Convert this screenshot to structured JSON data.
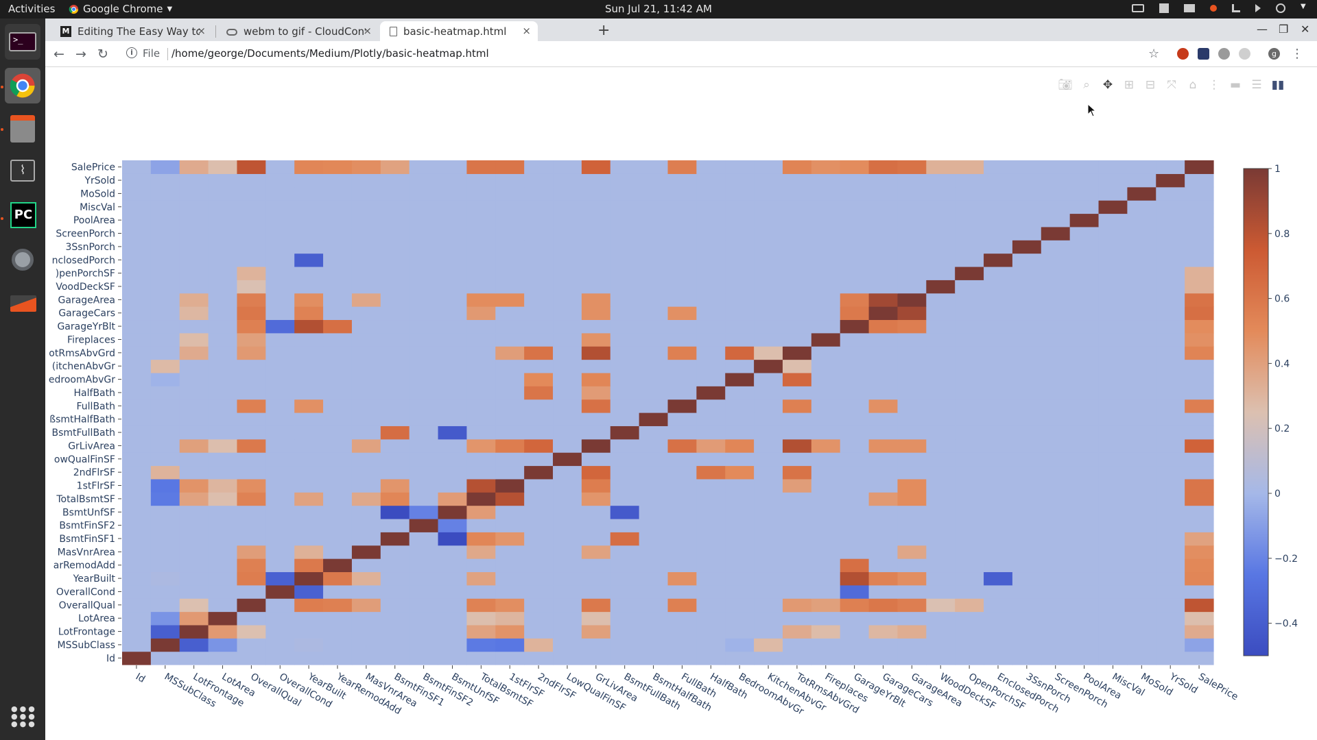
{
  "topbar": {
    "activities": "Activities",
    "app_name": "Google Chrome",
    "clock": "Sun Jul 21, 11:42 AM"
  },
  "browser": {
    "tabs": [
      {
        "title": "Editing The Easy Way to D",
        "favicon": "medium-icon",
        "active": false
      },
      {
        "title": "webm to gif - CloudConve",
        "favicon": "cloud-icon",
        "active": false
      },
      {
        "title": "basic-heatmap.html",
        "favicon": "file-icon",
        "active": true
      }
    ],
    "new_tab": "+",
    "close_glyph": "×",
    "address_scheme": "File",
    "address_url": "/home/george/Documents/Medium/Plotly/basic-heatmap.html",
    "profile_initial": "g"
  },
  "colors": {
    "page_bg": "#ffffff",
    "accent": "#e95420",
    "heatmap_scale": [
      "#3b4cc0",
      "#5977e3",
      "#a5b8e8",
      "#dcc0b0",
      "#e38a5a",
      "#cc5a33",
      "#7a3a34"
    ]
  },
  "chart_data": {
    "type": "heatmap",
    "variables": [
      "Id",
      "MSSubClass",
      "LotFrontage",
      "LotArea",
      "OverallQual",
      "OverallCond",
      "YearBuilt",
      "YearRemodAdd",
      "MasVnrArea",
      "BsmtFinSF1",
      "BsmtFinSF2",
      "BsmtUnfSF",
      "TotalBsmtSF",
      "1stFlrSF",
      "2ndFlrSF",
      "LowQualFinSF",
      "GrLivArea",
      "BsmtFullBath",
      "BsmtHalfBath",
      "FullBath",
      "HalfBath",
      "BedroomAbvGr",
      "KitchenAbvGr",
      "TotRmsAbvGrd",
      "Fireplaces",
      "GarageYrBlt",
      "GarageCars",
      "GarageArea",
      "WoodDeckSF",
      "OpenPorchSF",
      "EnclosedPorch",
      "3SsnPorch",
      "ScreenPorch",
      "PoolArea",
      "MiscVal",
      "MoSold",
      "YrSold",
      "SalePrice"
    ],
    "y_tick_labels_visible": [
      "SalePrice",
      "YrSold",
      "MoSold",
      "MiscVal",
      "PoolArea",
      "ScreenPorch",
      "3SsnPorch",
      "nclosedPorch",
      ")penPorchSF",
      "VoodDeckSF",
      "GarageArea",
      "GarageCars",
      "GarageYrBlt",
      "Fireplaces",
      "otRmsAbvGrd",
      "(itchenAbvGr",
      "edroomAbvGr",
      "HalfBath",
      "FullBath",
      "ßsmtHalfBath",
      "BsmtFullBath",
      "GrLivArea",
      "owQualFinSF",
      "2ndFlrSF",
      "1stFlrSF",
      "TotalBsmtSF",
      "BsmtUnfSF",
      "BsmtFinSF2",
      "BsmtFinSF1",
      "MasVnrArea",
      "arRemodAdd",
      "YearBuilt",
      "OverallCond",
      "OverallQual",
      "LotArea",
      "LotFrontage",
      "MSSubClass",
      "Id"
    ],
    "correlations": [
      {
        "a": "MSSubClass",
        "b": "LotFrontage",
        "v": -0.39
      },
      {
        "a": "MSSubClass",
        "b": "LotArea",
        "v": -0.14
      },
      {
        "a": "MSSubClass",
        "b": "YearBuilt",
        "v": 0.03
      },
      {
        "a": "MSSubClass",
        "b": "TotalBsmtSF",
        "v": -0.24
      },
      {
        "a": "MSSubClass",
        "b": "1stFlrSF",
        "v": -0.25
      },
      {
        "a": "MSSubClass",
        "b": "2ndFlrSF",
        "v": 0.31
      },
      {
        "a": "MSSubClass",
        "b": "BedroomAbvGr",
        "v": -0.02
      },
      {
        "a": "MSSubClass",
        "b": "KitchenAbvGr",
        "v": 0.28
      },
      {
        "a": "MSSubClass",
        "b": "SalePrice",
        "v": -0.08
      },
      {
        "a": "LotFrontage",
        "b": "LotArea",
        "v": 0.43
      },
      {
        "a": "LotFrontage",
        "b": "OverallQual",
        "v": 0.25
      },
      {
        "a": "LotFrontage",
        "b": "TotalBsmtSF",
        "v": 0.39
      },
      {
        "a": "LotFrontage",
        "b": "1stFlrSF",
        "v": 0.46
      },
      {
        "a": "LotFrontage",
        "b": "GrLivArea",
        "v": 0.4
      },
      {
        "a": "LotFrontage",
        "b": "TotRmsAbvGrd",
        "v": 0.35
      },
      {
        "a": "LotFrontage",
        "b": "Fireplaces",
        "v": 0.27
      },
      {
        "a": "LotFrontage",
        "b": "GarageCars",
        "v": 0.29
      },
      {
        "a": "LotFrontage",
        "b": "GarageArea",
        "v": 0.34
      },
      {
        "a": "LotFrontage",
        "b": "SalePrice",
        "v": 0.35
      },
      {
        "a": "LotArea",
        "b": "TotalBsmtSF",
        "v": 0.26
      },
      {
        "a": "LotArea",
        "b": "1stFlrSF",
        "v": 0.3
      },
      {
        "a": "LotArea",
        "b": "GrLivArea",
        "v": 0.26
      },
      {
        "a": "LotArea",
        "b": "SalePrice",
        "v": 0.26
      },
      {
        "a": "OverallQual",
        "b": "YearBuilt",
        "v": 0.57
      },
      {
        "a": "OverallQual",
        "b": "YearRemodAdd",
        "v": 0.55
      },
      {
        "a": "OverallQual",
        "b": "MasVnrArea",
        "v": 0.41
      },
      {
        "a": "OverallQual",
        "b": "TotalBsmtSF",
        "v": 0.54
      },
      {
        "a": "OverallQual",
        "b": "1stFlrSF",
        "v": 0.48
      },
      {
        "a": "OverallQual",
        "b": "GrLivArea",
        "v": 0.59
      },
      {
        "a": "OverallQual",
        "b": "FullBath",
        "v": 0.55
      },
      {
        "a": "OverallQual",
        "b": "TotRmsAbvGrd",
        "v": 0.43
      },
      {
        "a": "OverallQual",
        "b": "Fireplaces",
        "v": 0.4
      },
      {
        "a": "OverallQual",
        "b": "GarageYrBlt",
        "v": 0.55
      },
      {
        "a": "OverallQual",
        "b": "GarageCars",
        "v": 0.6
      },
      {
        "a": "OverallQual",
        "b": "GarageArea",
        "v": 0.56
      },
      {
        "a": "OverallQual",
        "b": "WoodDeckSF",
        "v": 0.24
      },
      {
        "a": "OverallQual",
        "b": "OpenPorchSF",
        "v": 0.31
      },
      {
        "a": "OverallQual",
        "b": "SalePrice",
        "v": 0.79
      },
      {
        "a": "OverallCond",
        "b": "YearBuilt",
        "v": -0.38
      },
      {
        "a": "OverallCond",
        "b": "GarageYrBlt",
        "v": -0.32
      },
      {
        "a": "YearBuilt",
        "b": "YearRemodAdd",
        "v": 0.59
      },
      {
        "a": "YearBuilt",
        "b": "MasVnrArea",
        "v": 0.32
      },
      {
        "a": "YearBuilt",
        "b": "TotalBsmtSF",
        "v": 0.39
      },
      {
        "a": "YearBuilt",
        "b": "FullBath",
        "v": 0.47
      },
      {
        "a": "YearBuilt",
        "b": "GarageYrBlt",
        "v": 0.83
      },
      {
        "a": "YearBuilt",
        "b": "GarageCars",
        "v": 0.54
      },
      {
        "a": "YearBuilt",
        "b": "GarageArea",
        "v": 0.48
      },
      {
        "a": "YearBuilt",
        "b": "EnclosedPorch",
        "v": -0.39
      },
      {
        "a": "YearBuilt",
        "b": "SalePrice",
        "v": 0.52
      },
      {
        "a": "YearRemodAdd",
        "b": "GarageYrBlt",
        "v": 0.64
      },
      {
        "a": "YearRemodAdd",
        "b": "SalePrice",
        "v": 0.51
      },
      {
        "a": "MasVnrArea",
        "b": "TotalBsmtSF",
        "v": 0.36
      },
      {
        "a": "MasVnrArea",
        "b": "GrLivArea",
        "v": 0.39
      },
      {
        "a": "MasVnrArea",
        "b": "GarageArea",
        "v": 0.37
      },
      {
        "a": "MasVnrArea",
        "b": "SalePrice",
        "v": 0.48
      },
      {
        "a": "BsmtFinSF1",
        "b": "BsmtUnfSF",
        "v": -0.5
      },
      {
        "a": "BsmtFinSF1",
        "b": "TotalBsmtSF",
        "v": 0.52
      },
      {
        "a": "BsmtFinSF1",
        "b": "1stFlrSF",
        "v": 0.45
      },
      {
        "a": "BsmtFinSF1",
        "b": "BsmtFullBath",
        "v": 0.65
      },
      {
        "a": "BsmtFinSF1",
        "b": "SalePrice",
        "v": 0.39
      },
      {
        "a": "BsmtFinSF2",
        "b": "BsmtUnfSF",
        "v": -0.21
      },
      {
        "a": "BsmtUnfSF",
        "b": "TotalBsmtSF",
        "v": 0.42
      },
      {
        "a": "BsmtUnfSF",
        "b": "BsmtFullBath",
        "v": -0.42
      },
      {
        "a": "TotalBsmtSF",
        "b": "1stFlrSF",
        "v": 0.82
      },
      {
        "a": "TotalBsmtSF",
        "b": "GrLivArea",
        "v": 0.45
      },
      {
        "a": "TotalBsmtSF",
        "b": "GarageCars",
        "v": 0.43
      },
      {
        "a": "TotalBsmtSF",
        "b": "GarageArea",
        "v": 0.49
      },
      {
        "a": "TotalBsmtSF",
        "b": "SalePrice",
        "v": 0.61
      },
      {
        "a": "1stFlrSF",
        "b": "GrLivArea",
        "v": 0.57
      },
      {
        "a": "1stFlrSF",
        "b": "TotRmsAbvGrd",
        "v": 0.41
      },
      {
        "a": "1stFlrSF",
        "b": "GarageArea",
        "v": 0.49
      },
      {
        "a": "1stFlrSF",
        "b": "SalePrice",
        "v": 0.61
      },
      {
        "a": "2ndFlrSF",
        "b": "GrLivArea",
        "v": 0.69
      },
      {
        "a": "2ndFlrSF",
        "b": "HalfBath",
        "v": 0.61
      },
      {
        "a": "2ndFlrSF",
        "b": "BedroomAbvGr",
        "v": 0.5
      },
      {
        "a": "2ndFlrSF",
        "b": "TotRmsAbvGrd",
        "v": 0.62
      },
      {
        "a": "GrLivArea",
        "b": "FullBath",
        "v": 0.63
      },
      {
        "a": "GrLivArea",
        "b": "HalfBath",
        "v": 0.42
      },
      {
        "a": "GrLivArea",
        "b": "BedroomAbvGr",
        "v": 0.52
      },
      {
        "a": "GrLivArea",
        "b": "TotRmsAbvGrd",
        "v": 0.83
      },
      {
        "a": "GrLivArea",
        "b": "Fireplaces",
        "v": 0.46
      },
      {
        "a": "GrLivArea",
        "b": "GarageCars",
        "v": 0.47
      },
      {
        "a": "GrLivArea",
        "b": "GarageArea",
        "v": 0.47
      },
      {
        "a": "GrLivArea",
        "b": "SalePrice",
        "v": 0.71
      },
      {
        "a": "FullBath",
        "b": "TotRmsAbvGrd",
        "v": 0.55
      },
      {
        "a": "FullBath",
        "b": "GarageCars",
        "v": 0.47
      },
      {
        "a": "FullBath",
        "b": "SalePrice",
        "v": 0.56
      },
      {
        "a": "BedroomAbvGr",
        "b": "TotRmsAbvGrd",
        "v": 0.68
      },
      {
        "a": "KitchenAbvGr",
        "b": "TotRmsAbvGrd",
        "v": 0.26
      },
      {
        "a": "TotRmsAbvGrd",
        "b": "SalePrice",
        "v": 0.53
      },
      {
        "a": "Fireplaces",
        "b": "SalePrice",
        "v": 0.47
      },
      {
        "a": "GarageYrBlt",
        "b": "GarageCars",
        "v": 0.59
      },
      {
        "a": "GarageYrBlt",
        "b": "GarageArea",
        "v": 0.56
      },
      {
        "a": "GarageYrBlt",
        "b": "SalePrice",
        "v": 0.49
      },
      {
        "a": "GarageCars",
        "b": "GarageArea",
        "v": 0.88
      },
      {
        "a": "GarageCars",
        "b": "SalePrice",
        "v": 0.64
      },
      {
        "a": "GarageArea",
        "b": "SalePrice",
        "v": 0.62
      },
      {
        "a": "WoodDeckSF",
        "b": "SalePrice",
        "v": 0.32
      },
      {
        "a": "OpenPorchSF",
        "b": "SalePrice",
        "v": 0.32
      }
    ],
    "colorbar": {
      "min": -0.5,
      "max": 1,
      "ticks": [
        1,
        0.8,
        0.6,
        0.4,
        0.2,
        0,
        -0.2,
        -0.4
      ],
      "tick_labels": [
        "1",
        "0.8",
        "0.6",
        "0.4",
        "0.2",
        "0",
        "−0.2",
        "−0.4"
      ]
    },
    "zlim": [
      -0.5,
      1
    ],
    "legend": "none",
    "grid": false
  },
  "modebar": {
    "buttons": [
      "camera-icon",
      "zoom-icon",
      "pan-icon",
      "zoom-in-icon",
      "zoom-out-icon",
      "autoscale-icon",
      "reset-axes-icon",
      "spike-lines-icon",
      "hover-closest-icon",
      "hover-compare-icon",
      "plotly-logo-icon"
    ]
  }
}
